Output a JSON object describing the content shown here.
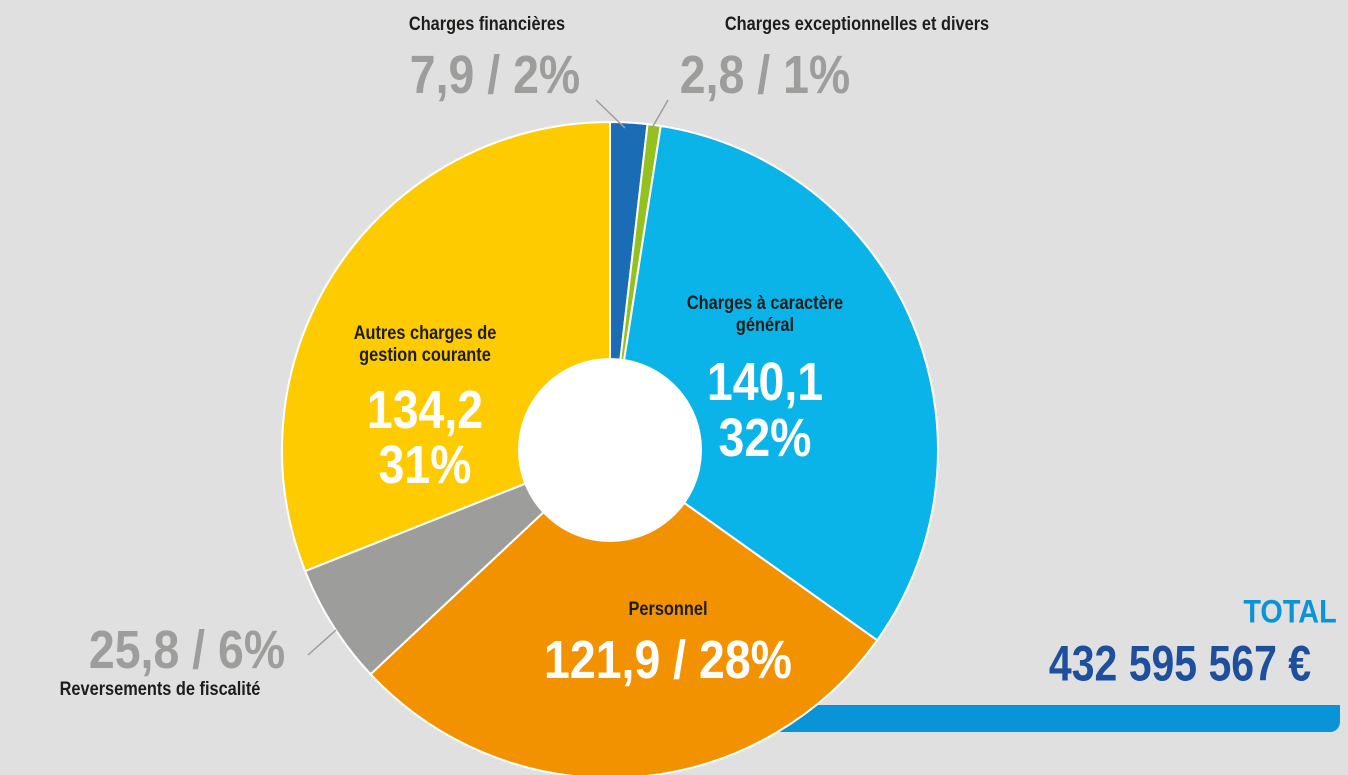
{
  "chart_data": {
    "type": "pie",
    "categories": [
      "Charges financières",
      "Charges exceptionnelles et divers",
      "Charges à caractère général",
      "Personnel",
      "Reversements de fiscalité",
      "Autres charges de gestion courante"
    ],
    "values": [
      7.9,
      2.8,
      140.1,
      121.9,
      25.8,
      134.2
    ],
    "value_labels": [
      "7,9",
      "2,8",
      "140,1",
      "121,9",
      "25,8",
      "134,2"
    ],
    "percents": [
      2,
      1,
      32,
      28,
      6,
      31
    ],
    "percent_labels": [
      "2%",
      "1%",
      "32%",
      "28%",
      "6%",
      "31%"
    ],
    "separator": " / ",
    "colors": [
      "#1a6db5",
      "#95c11f",
      "#0ab4e8",
      "#f39200",
      "#9d9d9c",
      "#fecb00"
    ],
    "donut": true,
    "total": {
      "label": "TOTAL",
      "value": 432595567,
      "value_label": "432 595 567 €"
    }
  }
}
